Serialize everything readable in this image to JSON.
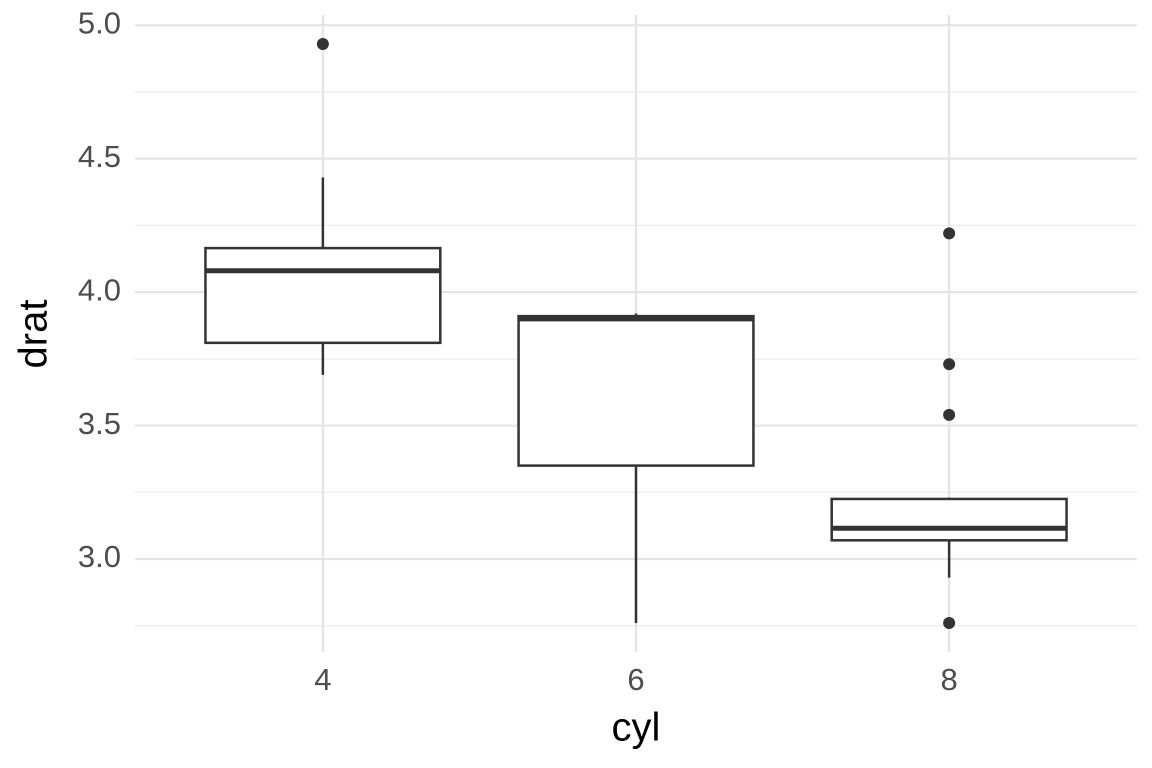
{
  "chart_data": {
    "type": "box",
    "x_label": "cyl",
    "y_label": "drat",
    "categories": [
      "4",
      "6",
      "8"
    ],
    "whisker_low": [
      3.69,
      2.76,
      2.93
    ],
    "q1": [
      3.81,
      3.35,
      3.07
    ],
    "median": [
      4.08,
      3.9,
      3.115
    ],
    "q3": [
      4.165,
      3.91,
      3.225
    ],
    "whisker_high": [
      4.43,
      3.92,
      3.23
    ],
    "outliers": [
      [
        4.93
      ],
      [],
      [
        4.22,
        3.73,
        3.54,
        2.76
      ]
    ],
    "ylim": [
      2.6515,
      5.0385
    ],
    "yticks": [
      {
        "value": 3,
        "label": "3.0"
      },
      3.5,
      {
        "value": 4,
        "label": "4.0"
      },
      4.5,
      {
        "value": 5,
        "label": "5.0"
      }
    ],
    "minor_yticks": [
      2.75,
      3.25,
      3.75,
      4.25,
      4.75
    ],
    "grid": true,
    "color": "#333333"
  }
}
